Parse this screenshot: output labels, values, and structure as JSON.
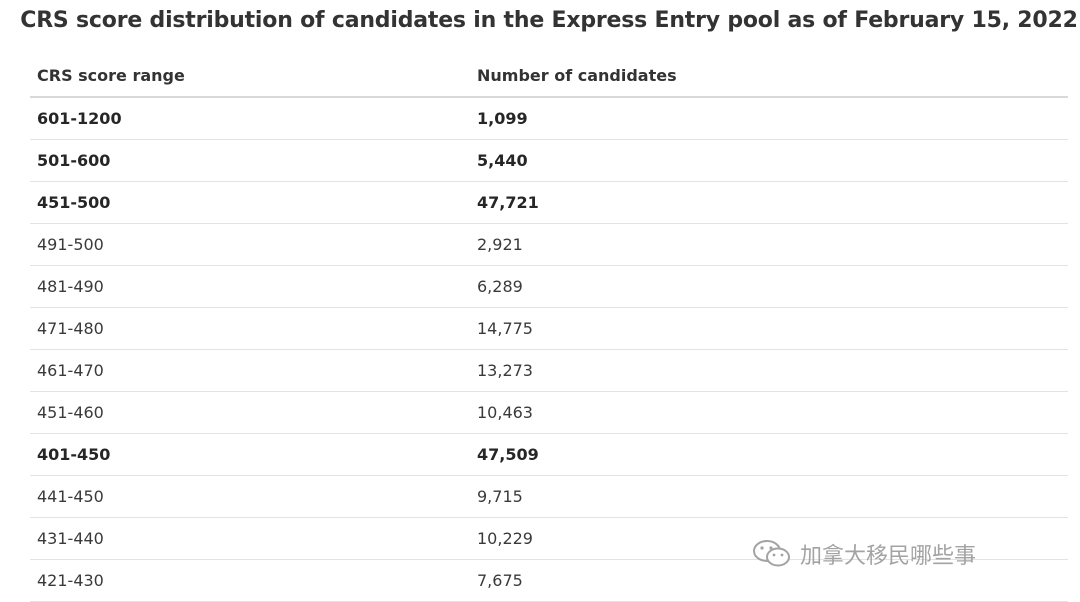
{
  "title": "CRS score distribution of candidates in the Express Entry pool as of February 15, 2022",
  "table": {
    "headers": [
      "CRS score range",
      "Number of candidates"
    ],
    "rows": [
      {
        "range": "601-1200",
        "count": "1,099",
        "bold": true
      },
      {
        "range": "501-600",
        "count": "5,440",
        "bold": true
      },
      {
        "range": "451-500",
        "count": "47,721",
        "bold": true
      },
      {
        "range": "491-500",
        "count": "2,921",
        "bold": false
      },
      {
        "range": "481-490",
        "count": "6,289",
        "bold": false
      },
      {
        "range": "471-480",
        "count": "14,775",
        "bold": false
      },
      {
        "range": "461-470",
        "count": "13,273",
        "bold": false
      },
      {
        "range": "451-460",
        "count": "10,463",
        "bold": false
      },
      {
        "range": "401-450",
        "count": "47,509",
        "bold": true
      },
      {
        "range": "441-450",
        "count": "9,715",
        "bold": false
      },
      {
        "range": "431-440",
        "count": "10,229",
        "bold": false
      },
      {
        "range": "421-430",
        "count": "7,675",
        "bold": false
      }
    ]
  },
  "watermark": {
    "icon": "wechat-icon",
    "text": "加拿大移民哪些事"
  }
}
